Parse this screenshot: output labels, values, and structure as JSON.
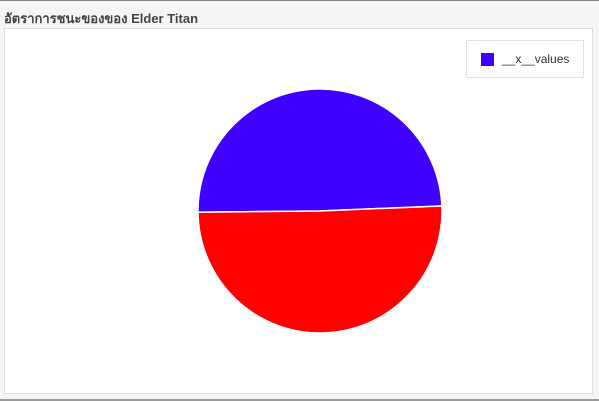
{
  "panel": {
    "title": "อัตราการชนะของของ Elder Titan"
  },
  "legend": {
    "label": "__x__values",
    "swatch_color": "#4000ff"
  },
  "chart_data": {
    "type": "pie",
    "title": "อัตราการชนะของของ Elder Titan",
    "legend_position": "top-right",
    "slices": [
      {
        "value": 49.5,
        "color": "#4000ff"
      },
      {
        "value": 50.5,
        "color": "#ff0000"
      }
    ]
  }
}
